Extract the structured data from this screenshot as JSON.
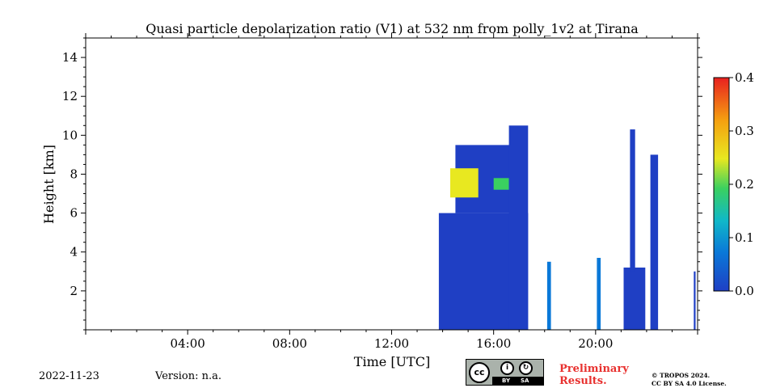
{
  "chart_data": {
    "type": "heatmap",
    "title": "Quasi particle depolarization ratio (V1) at 532 nm from polly_1v2 at Tirana",
    "xlabel": "Time [UTC]",
    "ylabel": "Height [km]",
    "xlim_hours": [
      0,
      24
    ],
    "ylim_km": [
      0,
      15
    ],
    "x_ticks": [
      {
        "hour": 4,
        "label": "04:00"
      },
      {
        "hour": 8,
        "label": "08:00"
      },
      {
        "hour": 12,
        "label": "12:00"
      },
      {
        "hour": 16,
        "label": "16:00"
      },
      {
        "hour": 20,
        "label": "20:00"
      }
    ],
    "y_ticks": [
      {
        "value": 2,
        "label": "2"
      },
      {
        "value": 4,
        "label": "4"
      },
      {
        "value": 6,
        "label": "6"
      },
      {
        "value": 8,
        "label": "8"
      },
      {
        "value": 10,
        "label": "10"
      },
      {
        "value": 12,
        "label": "12"
      },
      {
        "value": 14,
        "label": "14"
      }
    ],
    "colorbar": {
      "range": [
        0.0,
        0.4
      ],
      "ticks": [
        {
          "value": 0.0,
          "label": "0.0"
        },
        {
          "value": 0.1,
          "label": "0.1"
        },
        {
          "value": 0.2,
          "label": "0.2"
        },
        {
          "value": 0.3,
          "label": "0.3"
        },
        {
          "value": 0.4,
          "label": "0.4"
        }
      ],
      "colors": [
        "#1f3fc4",
        "#0a78d8",
        "#10b8c8",
        "#3ad060",
        "#e8e820",
        "#f5a010",
        "#e82020"
      ]
    },
    "regions": [
      {
        "name": "main-cloud-block",
        "t0": 13.85,
        "t1": 17.35,
        "h0": 0.0,
        "h1": 6.0,
        "value": 0.02
      },
      {
        "name": "upper-plume",
        "t0": 14.5,
        "t1": 17.2,
        "h0": 6.0,
        "h1": 9.5,
        "value": 0.03
      },
      {
        "name": "cirrus-high-depol",
        "t0": 14.3,
        "t1": 15.4,
        "h0": 6.8,
        "h1": 8.3,
        "value": 0.28
      },
      {
        "name": "cirrus-mid-depol",
        "t0": 16.0,
        "t1": 16.6,
        "h0": 7.2,
        "h1": 7.8,
        "value": 0.2
      },
      {
        "name": "dense-column-1",
        "t0": 16.6,
        "t1": 17.35,
        "h0": 0.0,
        "h1": 10.5,
        "value": 0.02
      },
      {
        "name": "col-18h",
        "t0": 18.1,
        "t1": 18.25,
        "h0": 0.0,
        "h1": 3.5,
        "value": 0.04
      },
      {
        "name": "col-20h",
        "t0": 20.05,
        "t1": 20.2,
        "h0": 0.0,
        "h1": 3.7,
        "value": 0.04
      },
      {
        "name": "col-21h",
        "t0": 21.1,
        "t1": 21.95,
        "h0": 0.0,
        "h1": 3.2,
        "value": 0.03
      },
      {
        "name": "col-21h-tall",
        "t0": 21.35,
        "t1": 21.55,
        "h0": 3.0,
        "h1": 10.3,
        "value": 0.02
      },
      {
        "name": "col-22h",
        "t0": 22.15,
        "t1": 22.45,
        "h0": 0.0,
        "h1": 9.0,
        "value": 0.03
      },
      {
        "name": "col-23h55",
        "t0": 23.85,
        "t1": 23.92,
        "h0": 0.0,
        "h1": 3.0,
        "value": 0.03
      }
    ]
  },
  "footer": {
    "date": "2022-11-23",
    "version": "Version: n.a.",
    "cc_label": "cc",
    "cc_by": "BY",
    "cc_sa": "SA",
    "preliminary": "Preliminary Results.",
    "copyright_line1": "© TROPOS 2024.",
    "copyright_line2": "CC BY SA 4.0 License."
  }
}
